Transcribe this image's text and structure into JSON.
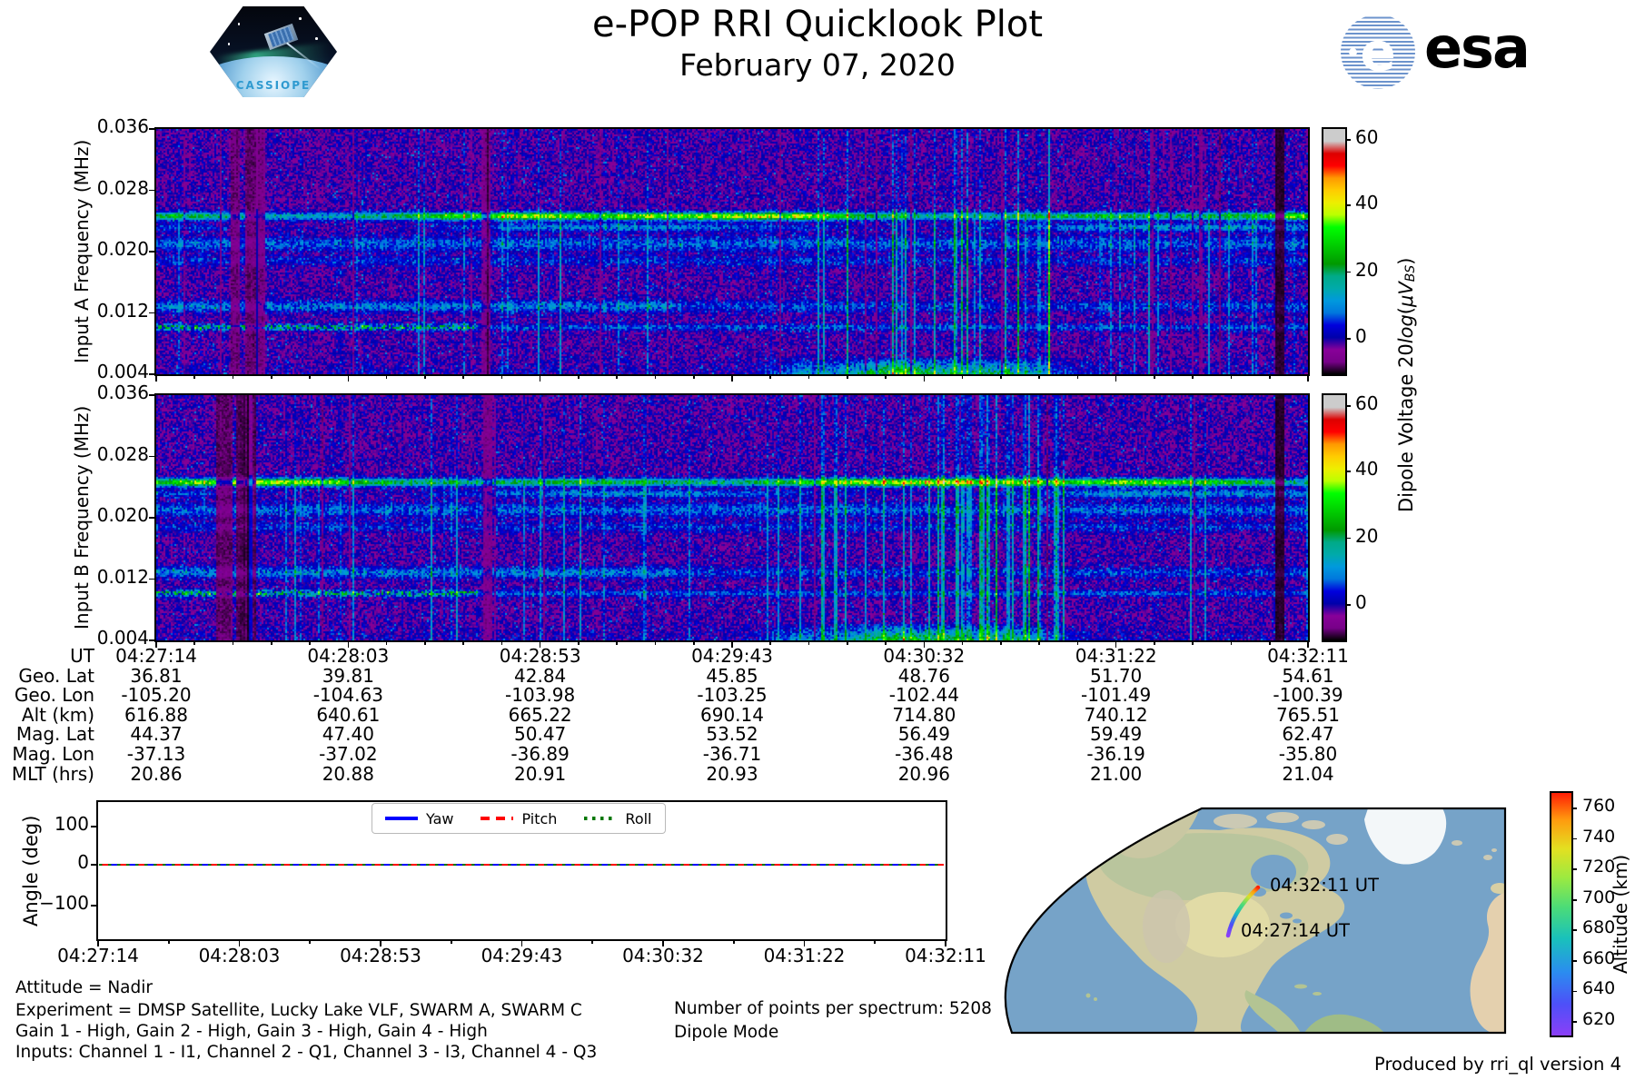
{
  "header": {
    "title": "e-POP RRI Quicklook Plot",
    "date": "February 07, 2020",
    "esa_wordmark": "esa",
    "esa_globe_letter": "e",
    "cassiope_label": "CASSIOPE"
  },
  "spectrograms": {
    "panel_a_ylabel": "Input A Frequency (MHz)",
    "panel_b_ylabel": "Input B Frequency (MHz)",
    "ytick_labels": [
      "0.036",
      "0.028",
      "0.020",
      "0.012",
      "0.004"
    ],
    "colorbar": {
      "ticks": [
        "60",
        "40",
        "20",
        "0"
      ],
      "label_prefix": "Dipole Voltage 20",
      "label_log": "log",
      "label_open": "(",
      "label_unit": "μV",
      "label_sub": "BS",
      "label_close": ")"
    }
  },
  "ephemeris": {
    "row_labels": [
      "UT",
      "Geo. Lat",
      "Geo. Lon",
      "Alt (km)",
      "Mag. Lat",
      "Mag. Lon",
      "MLT (hrs)"
    ],
    "columns": [
      [
        "04:27:14",
        "36.81",
        "-105.20",
        "616.88",
        "44.37",
        "-37.13",
        "20.86"
      ],
      [
        "04:28:03",
        "39.81",
        "-104.63",
        "640.61",
        "47.40",
        "-37.02",
        "20.88"
      ],
      [
        "04:28:53",
        "42.84",
        "-103.98",
        "665.22",
        "50.47",
        "-36.89",
        "20.91"
      ],
      [
        "04:29:43",
        "45.85",
        "-103.25",
        "690.14",
        "53.52",
        "-36.71",
        "20.93"
      ],
      [
        "04:30:32",
        "48.76",
        "-102.44",
        "714.80",
        "56.49",
        "-36.48",
        "20.96"
      ],
      [
        "04:31:22",
        "51.70",
        "-101.49",
        "740.12",
        "59.49",
        "-36.19",
        "21.00"
      ],
      [
        "04:32:11",
        "54.61",
        "-100.39",
        "765.51",
        "62.47",
        "-35.80",
        "21.04"
      ]
    ]
  },
  "angle_plot": {
    "ylabel": "Angle (deg)",
    "ytick_labels": [
      "100",
      "0",
      "−100"
    ],
    "xtick_labels": [
      "04:27:14",
      "04:28:03",
      "04:28:53",
      "04:29:43",
      "04:30:32",
      "04:31:22",
      "04:32:11"
    ],
    "legend": [
      {
        "label": "Yaw",
        "color": "#0000ff",
        "style": "solid"
      },
      {
        "label": "Pitch",
        "color": "#ff0000",
        "style": "dashed"
      },
      {
        "label": "Roll",
        "color": "#007700",
        "style": "dotted"
      }
    ]
  },
  "footer": {
    "attitude": "Attitude = Nadir",
    "experiment": "Experiment = DMSP Satellite, Lucky Lake VLF, SWARM A, SWARM C",
    "gains": "Gain 1 - High, Gain 2 - High, Gain 3 - High, Gain 4 - High",
    "inputs": "Inputs: Channel 1 - I1, Channel 2 - Q1, Channel 3 - I3, Channel 4 - Q3",
    "points": "Number of points per spectrum: 5208",
    "mode": "Dipole Mode",
    "produced_by": "Produced by rri_ql version 4"
  },
  "map": {
    "start_label": "04:27:14 UT",
    "end_label": "04:32:11 UT",
    "colorbar_label": "Altitude (km)",
    "colorbar_ticks": [
      "760",
      "740",
      "720",
      "700",
      "680",
      "660",
      "640",
      "620"
    ]
  },
  "colors": {
    "figure_bg": "#ffffff",
    "esa_blue": "#1c3e94",
    "cassiope_text_blue": "#2f9ad0",
    "legend_yaw": "#0000ff",
    "legend_pitch": "#ff0000",
    "legend_roll": "#007700",
    "map_ocean": "#76a3c8",
    "map_land": "#cfcba2",
    "spectrogram_colormap": "nipy_spectral",
    "track_colormap": "rainbow"
  },
  "chart_data": [
    {
      "type": "heatmap",
      "title": "Input A spectrogram",
      "ylabel": "Input A Frequency (MHz)",
      "yticks": [
        0.036,
        0.028,
        0.02,
        0.012,
        0.004
      ],
      "y_range_mhz": [
        0.004,
        0.036
      ],
      "x_ticks": [
        "04:27:14",
        "04:28:03",
        "04:28:53",
        "04:29:43",
        "04:30:32",
        "04:31:22",
        "04:32:11"
      ],
      "colorbar": {
        "label": "Dipole Voltage 20log(μVBS)",
        "ticks": [
          0,
          20,
          40,
          60
        ],
        "range": [
          -11,
          63
        ],
        "colormap": "nipy_spectral"
      },
      "features": [
        "bright persistent emission band near 0.025 MHz across the whole pass, brightest mid-pass",
        "diffuse cyan bands between 0.017 and 0.022 MHz",
        "speckled cyan/green band near 0.010 MHz, strongest at the start of the pass",
        "broadband green enhancement below 0.006 MHz around 04:30:50-04:31:10",
        "many narrow vertical cyan interference streaks, clustered 04:30-04:31",
        "dark dropout columns near 04:27:40 and just before the right edge"
      ]
    },
    {
      "type": "heatmap",
      "title": "Input B spectrogram",
      "ylabel": "Input B Frequency (MHz)",
      "yticks": [
        0.036,
        0.028,
        0.02,
        0.012,
        0.004
      ],
      "y_range_mhz": [
        0.004,
        0.036
      ],
      "x_ticks": [
        "04:27:14",
        "04:28:03",
        "04:28:53",
        "04:29:43",
        "04:30:32",
        "04:31:22",
        "04:32:11"
      ],
      "colorbar": {
        "label": "Dipole Voltage 20log(μVBS)",
        "ticks": [
          0,
          20,
          40,
          60
        ],
        "range": [
          -11,
          63
        ],
        "colormap": "nipy_spectral"
      },
      "features": [
        "same morphology as Input A with slightly darker start-of-pass columns"
      ]
    },
    {
      "type": "table",
      "title": "Ephemeris",
      "rows": [
        "UT",
        "Geo. Lat",
        "Geo. Lon",
        "Alt (km)",
        "Mag. Lat",
        "Mag. Lon",
        "MLT (hrs)"
      ],
      "columns": [
        [
          "04:27:14",
          36.81,
          -105.2,
          616.88,
          44.37,
          -37.13,
          20.86
        ],
        [
          "04:28:03",
          39.81,
          -104.63,
          640.61,
          47.4,
          -37.02,
          20.88
        ],
        [
          "04:28:53",
          42.84,
          -103.98,
          665.22,
          50.47,
          -36.89,
          20.91
        ],
        [
          "04:29:43",
          45.85,
          -103.25,
          690.14,
          53.52,
          -36.71,
          20.93
        ],
        [
          "04:30:32",
          48.76,
          -102.44,
          714.8,
          56.49,
          -36.48,
          20.96
        ],
        [
          "04:31:22",
          51.7,
          -101.49,
          740.12,
          59.49,
          -36.19,
          21.0
        ],
        [
          "04:32:11",
          54.61,
          -100.39,
          765.51,
          62.47,
          -35.8,
          21.04
        ]
      ]
    },
    {
      "type": "line",
      "title": "Attitude angles",
      "ylabel": "Angle (deg)",
      "ylim": [
        -190,
        160
      ],
      "yticks": [
        -100,
        0,
        100
      ],
      "x": [
        "04:27:14",
        "04:28:03",
        "04:28:53",
        "04:29:43",
        "04:30:32",
        "04:31:22",
        "04:32:11"
      ],
      "series": [
        {
          "name": "Yaw",
          "values": [
            0,
            0,
            0,
            0,
            0,
            0,
            0
          ]
        },
        {
          "name": "Pitch",
          "values": [
            0,
            0,
            0,
            0,
            0,
            0,
            0
          ]
        },
        {
          "name": "Roll",
          "values": [
            0,
            0,
            0,
            0,
            0,
            0,
            0
          ]
        }
      ],
      "legend_position": "upper center",
      "grid": false
    },
    {
      "type": "line",
      "title": "Ground track map",
      "annotations": [
        "04:27:14 UT",
        "04:32:11 UT"
      ],
      "colorbar": {
        "label": "Altitude (km)",
        "ticks": [
          620,
          640,
          660,
          680,
          700,
          720,
          740,
          760
        ],
        "range": [
          611,
          770
        ],
        "colormap": "rainbow"
      },
      "track": {
        "start": {
          "time": "04:27:14",
          "lat": 36.81,
          "lon": -105.2,
          "alt_km": 616.88
        },
        "end": {
          "time": "04:32:11",
          "lat": 54.61,
          "lon": -100.39,
          "alt_km": 765.51
        }
      }
    }
  ]
}
